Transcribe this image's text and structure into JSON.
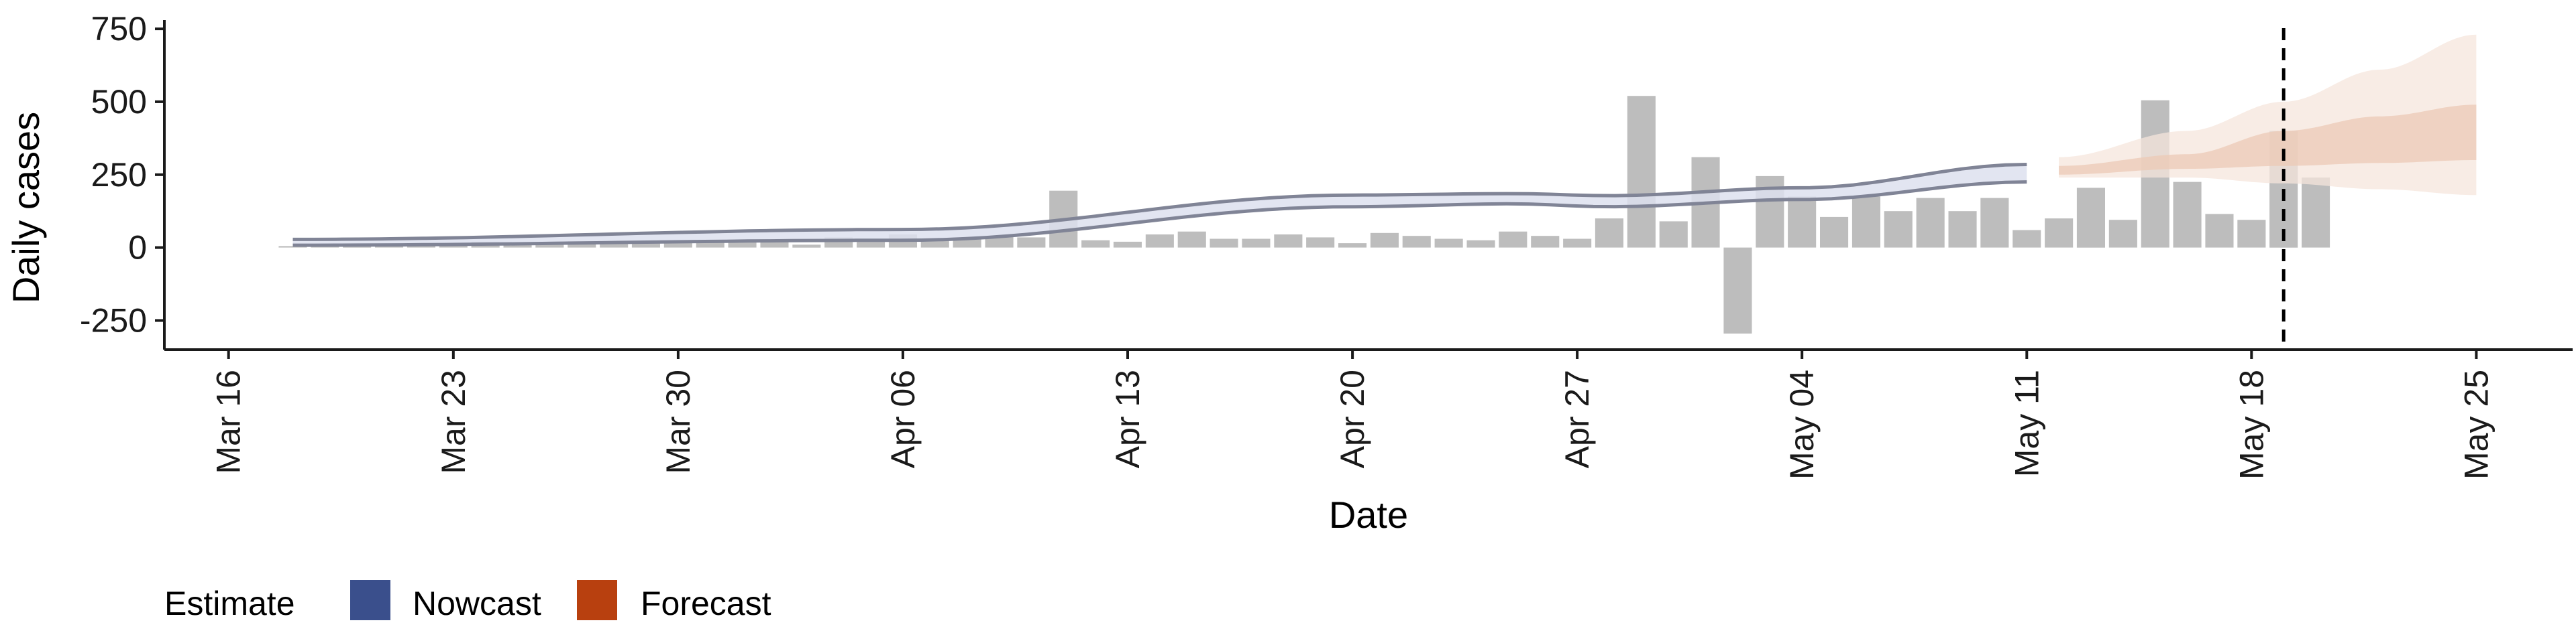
{
  "chart_data": {
    "type": "bar",
    "xlabel": "Date",
    "ylabel": "Daily cases",
    "ylim": [
      -350,
      780
    ],
    "y_ticks": [
      -250,
      0,
      250,
      500,
      750
    ],
    "y_tick_labels": [
      "-250",
      "0",
      "250",
      "500",
      "750"
    ],
    "x_tick_dates": [
      "2020-03-16",
      "2020-03-23",
      "2020-03-30",
      "2020-04-06",
      "2020-04-13",
      "2020-04-20",
      "2020-04-27",
      "2020-05-04",
      "2020-05-11",
      "2020-05-18",
      "2020-05-25"
    ],
    "x_tick_labels": [
      "Mar 16",
      "Mar 23",
      "Mar 30",
      "Apr 06",
      "Apr 13",
      "Apr 20",
      "Apr 27",
      "May 04",
      "May 11",
      "May 18",
      "May 25"
    ],
    "xlim": [
      "2020-03-14",
      "2020-05-28"
    ],
    "report_date": "2020-05-19",
    "bars": {
      "start_date": "2020-03-18",
      "values": [
        5,
        8,
        10,
        12,
        15,
        14,
        20,
        12,
        18,
        22,
        14,
        20,
        16,
        18,
        22,
        20,
        10,
        35,
        25,
        45,
        30,
        35,
        40,
        35,
        195,
        25,
        20,
        45,
        55,
        30,
        30,
        45,
        35,
        15,
        50,
        40,
        30,
        25,
        55,
        40,
        30,
        100,
        520,
        90,
        310,
        -295,
        245,
        175,
        105,
        175,
        125,
        170,
        125,
        170,
        60,
        100,
        205,
        95,
        505,
        225,
        115,
        95,
        400,
        240
      ]
    },
    "nowcast": {
      "start_date": "2020-03-18",
      "end_date": "2020-05-11",
      "upper_points": [
        [
          "2020-03-18",
          28
        ],
        [
          "2020-04-06",
          62
        ],
        [
          "2020-04-20",
          180
        ],
        [
          "2020-04-25",
          185
        ],
        [
          "2020-04-28",
          178
        ],
        [
          "2020-05-04",
          205
        ],
        [
          "2020-05-11",
          285
        ]
      ],
      "lower_points": [
        [
          "2020-03-18",
          8
        ],
        [
          "2020-04-06",
          25
        ],
        [
          "2020-04-20",
          140
        ],
        [
          "2020-04-25",
          150
        ],
        [
          "2020-04-28",
          140
        ],
        [
          "2020-05-04",
          165
        ],
        [
          "2020-05-11",
          225
        ]
      ]
    },
    "forecast": {
      "start_date": "2020-05-12",
      "end_date": "2020-05-25",
      "outer_upper": [
        [
          "2020-05-12",
          310
        ],
        [
          "2020-05-16",
          400
        ],
        [
          "2020-05-19",
          500
        ],
        [
          "2020-05-22",
          610
        ],
        [
          "2020-05-25",
          730
        ]
      ],
      "outer_lower": [
        [
          "2020-05-12",
          240
        ],
        [
          "2020-05-16",
          240
        ],
        [
          "2020-05-19",
          220
        ],
        [
          "2020-05-22",
          200
        ],
        [
          "2020-05-25",
          180
        ]
      ],
      "inner_upper": [
        [
          "2020-05-12",
          280
        ],
        [
          "2020-05-16",
          320
        ],
        [
          "2020-05-19",
          400
        ],
        [
          "2020-05-22",
          450
        ],
        [
          "2020-05-25",
          490
        ]
      ],
      "inner_lower": [
        [
          "2020-05-12",
          250
        ],
        [
          "2020-05-16",
          270
        ],
        [
          "2020-05-19",
          280
        ],
        [
          "2020-05-22",
          290
        ],
        [
          "2020-05-25",
          300
        ]
      ]
    },
    "legend": {
      "title": "Estimate",
      "placement": "bottom-left",
      "items": [
        {
          "label": "Nowcast",
          "color": "#3a4f8c"
        },
        {
          "label": "Forecast",
          "color": "#b8400f"
        }
      ]
    },
    "colors": {
      "bar": "#bdbdbd",
      "nowcast_fill": "#dde1ee",
      "nowcast_line": "#808496",
      "forecast_outer": "#f6e5dc",
      "forecast_inner": "#ecc9b5",
      "axis": "#1a1a1a"
    },
    "grid": false
  }
}
